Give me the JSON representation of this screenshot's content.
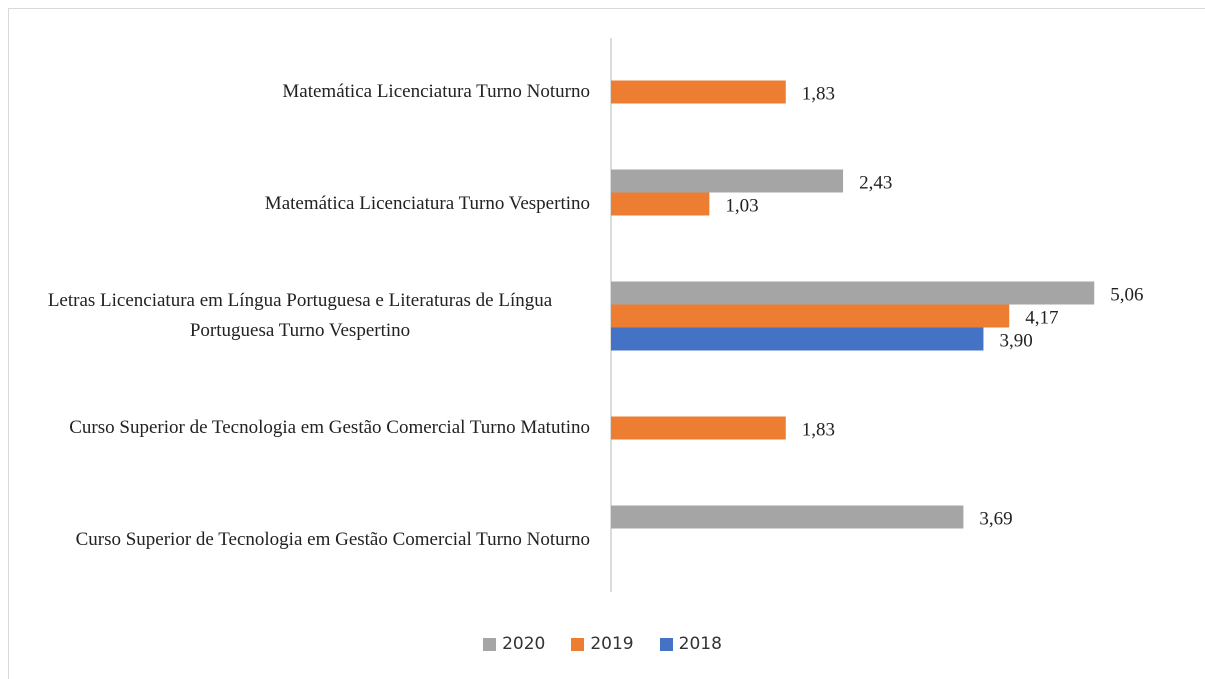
{
  "chart_data": {
    "type": "barh",
    "categories": [
      "Matemática Licenciatura Turno Noturno",
      "Matemática Licenciatura Turno Vespertino",
      "Letras Licenciatura em Língua Portuguesa e Literaturas de Língua Portuguesa Turno Vespertino",
      "Curso Superior de Tecnologia em Gestão Comercial Turno Matutino",
      "Curso Superior de Tecnologia em Gestão Comercial Turno Noturno"
    ],
    "series": [
      {
        "name": "2020",
        "color": "#a5a5a5",
        "values": [
          null,
          2.43,
          5.06,
          null,
          3.69
        ],
        "value_labels": [
          null,
          "2,43",
          "5,06",
          null,
          "3,69"
        ]
      },
      {
        "name": "2019",
        "color": "#ed7d31",
        "values": [
          1.83,
          1.03,
          4.17,
          1.83,
          null
        ],
        "value_labels": [
          "1,83",
          "1,03",
          "4,17",
          "1,83",
          null
        ]
      },
      {
        "name": "2018",
        "color": "#4472c4",
        "values": [
          null,
          null,
          3.9,
          null,
          null
        ],
        "value_labels": [
          null,
          null,
          "3,90",
          null,
          null
        ]
      }
    ],
    "legend": "bottom"
  }
}
